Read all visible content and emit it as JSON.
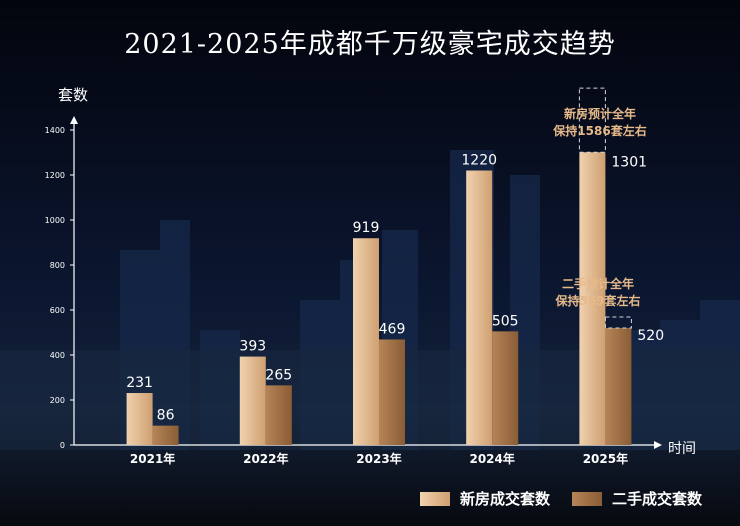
{
  "title": "2021-2025年成都千万级豪宅成交趋势",
  "colors": {
    "new_home": "#e8c29a",
    "second_hand": "#a47346",
    "annotation": "#e6b98a",
    "axis": "#ffffff"
  },
  "notes": {
    "new_home": [
      "新房预计全年",
      "保持1586套左右"
    ],
    "second_hand": [
      "二手预计全年",
      "保持569套左右"
    ]
  },
  "chart_data": {
    "type": "bar",
    "title": "2021-2025年成都千万级豪宅成交趋势",
    "ylabel": "套数",
    "xlabel": "时间",
    "categories": [
      "2021年",
      "2022年",
      "2023年",
      "2024年",
      "2025年"
    ],
    "ylim": [
      0,
      1400
    ],
    "yticks": [
      0,
      200,
      400,
      600,
      800,
      1000,
      1200,
      1400
    ],
    "grid": false,
    "legend_position": "bottom-right",
    "series": [
      {
        "name": "新房成交套数",
        "values": [
          231,
          393,
          919,
          1220,
          1301
        ]
      },
      {
        "name": "二手成交套数",
        "values": [
          86,
          265,
          469,
          505,
          520
        ]
      }
    ],
    "forecast": [
      {
        "series": "新房成交套数",
        "category": "2025年",
        "value": 1586
      },
      {
        "series": "二手成交套数",
        "category": "2025年",
        "value": 569
      }
    ]
  }
}
